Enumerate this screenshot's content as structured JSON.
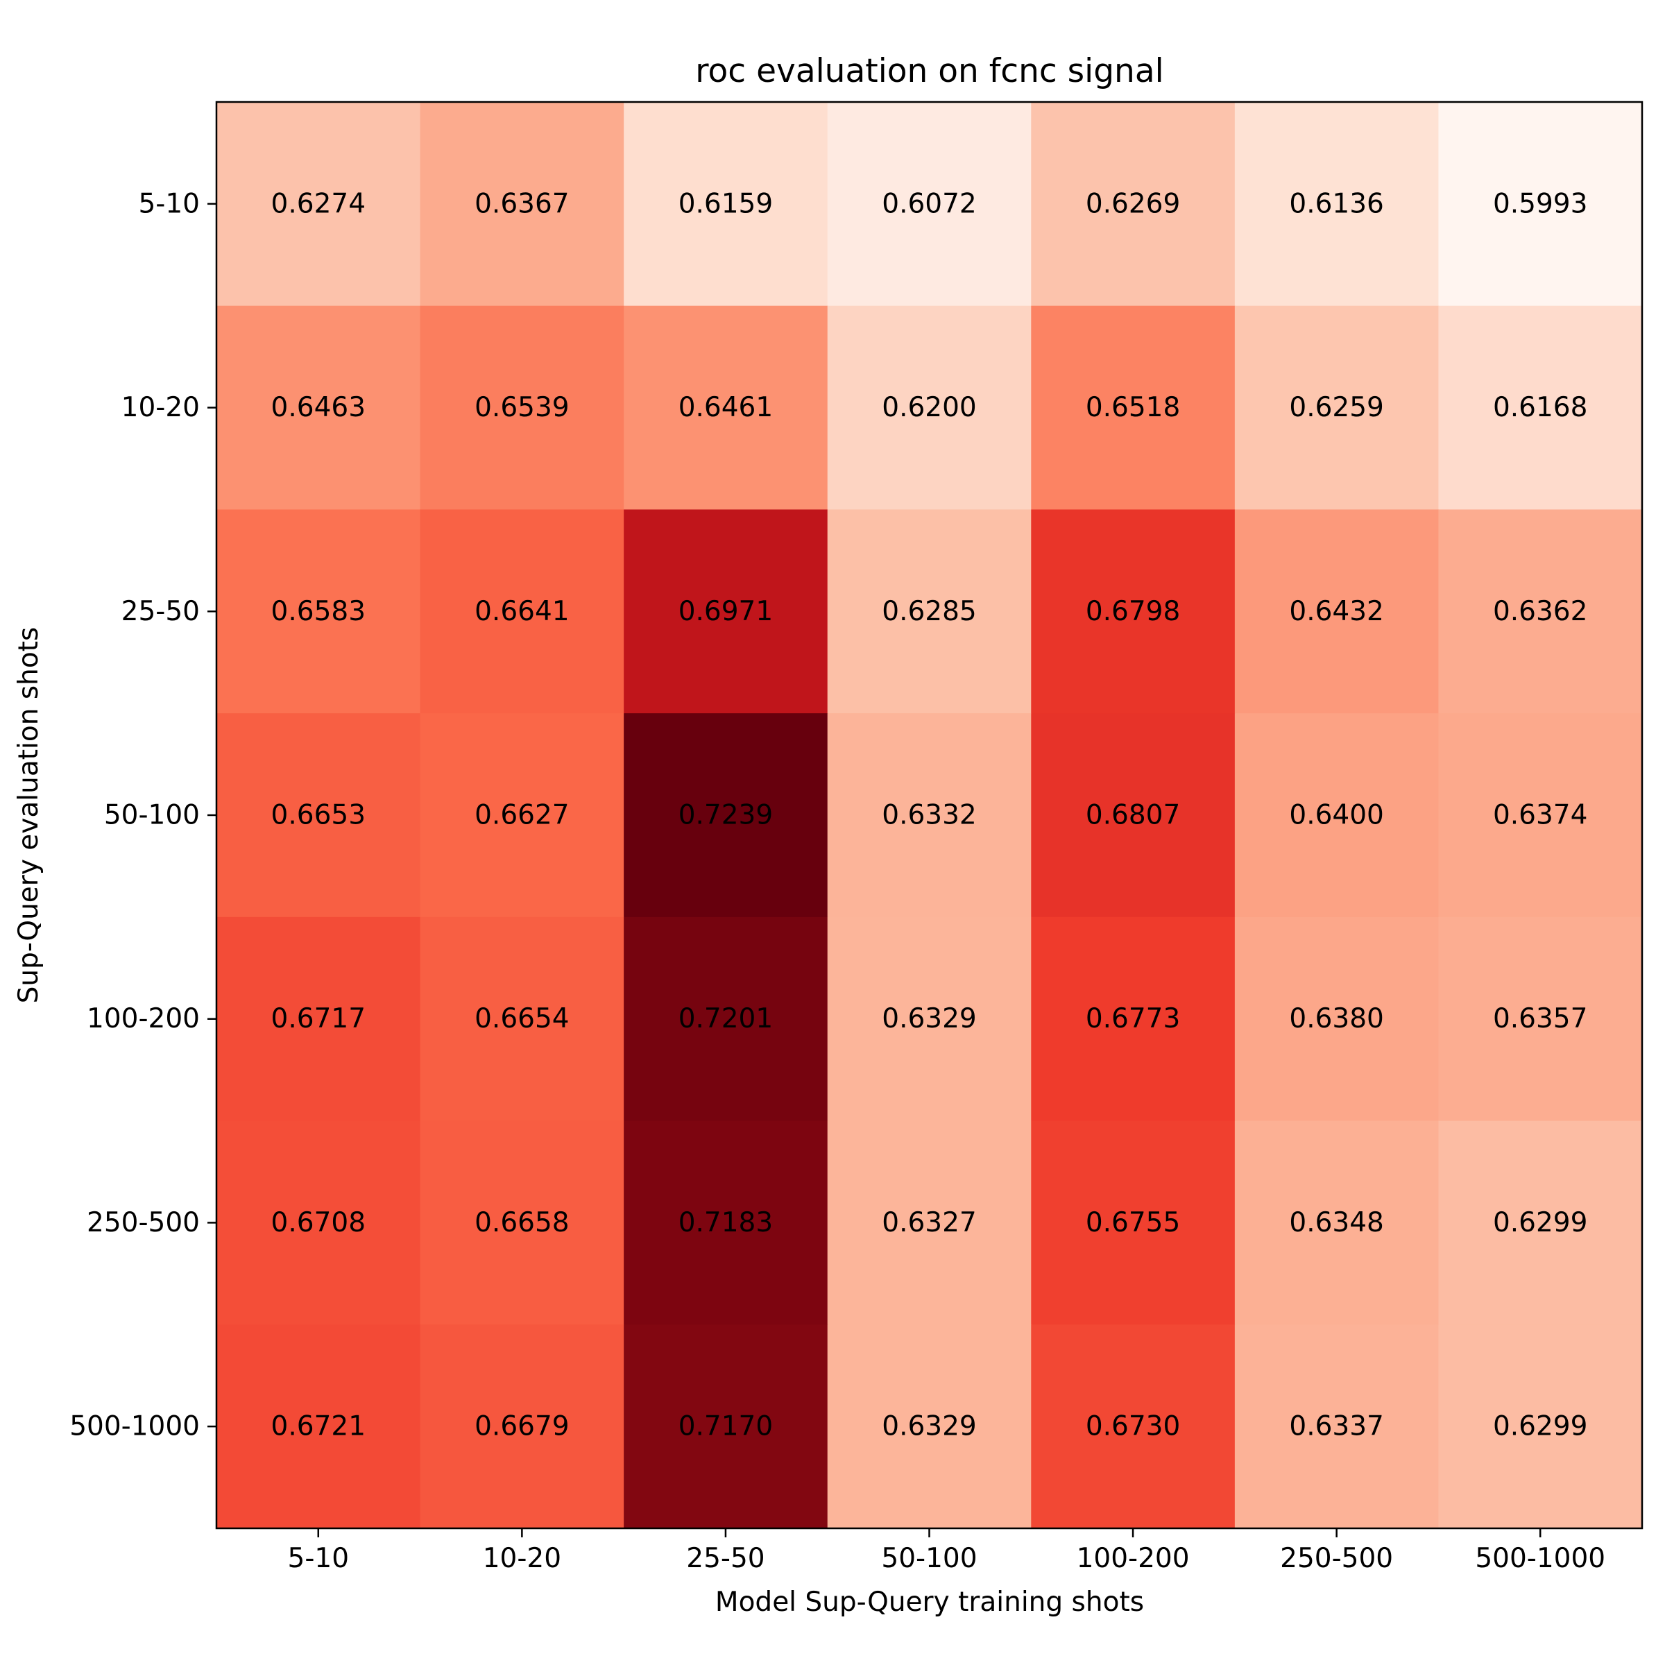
{
  "chart_data": {
    "type": "heatmap",
    "title": "roc evaluation on fcnc signal",
    "xlabel": "Model Sup-Query training shots",
    "ylabel": "Sup-Query evaluation shots",
    "x_categories": [
      "5-10",
      "10-20",
      "25-50",
      "50-100",
      "100-200",
      "250-500",
      "500-1000"
    ],
    "y_categories": [
      "5-10",
      "10-20",
      "25-50",
      "50-100",
      "100-200",
      "250-500",
      "500-1000"
    ],
    "values": [
      [
        0.6274,
        0.6367,
        0.6159,
        0.6072,
        0.6269,
        0.6136,
        0.5993
      ],
      [
        0.6463,
        0.6539,
        0.6461,
        0.62,
        0.6518,
        0.6259,
        0.6168
      ],
      [
        0.6583,
        0.6641,
        0.6971,
        0.6285,
        0.6798,
        0.6432,
        0.6362
      ],
      [
        0.6653,
        0.6627,
        0.7239,
        0.6332,
        0.6807,
        0.64,
        0.6374
      ],
      [
        0.6717,
        0.6654,
        0.7201,
        0.6329,
        0.6773,
        0.638,
        0.6357
      ],
      [
        0.6708,
        0.6658,
        0.7183,
        0.6327,
        0.6755,
        0.6348,
        0.6299
      ],
      [
        0.6721,
        0.6679,
        0.717,
        0.6329,
        0.673,
        0.6337,
        0.6299
      ]
    ],
    "value_format": "4 decimals",
    "colormap": "Reds",
    "color_range": [
      0.5993,
      0.7239
    ],
    "grid": false,
    "legend": "none"
  }
}
